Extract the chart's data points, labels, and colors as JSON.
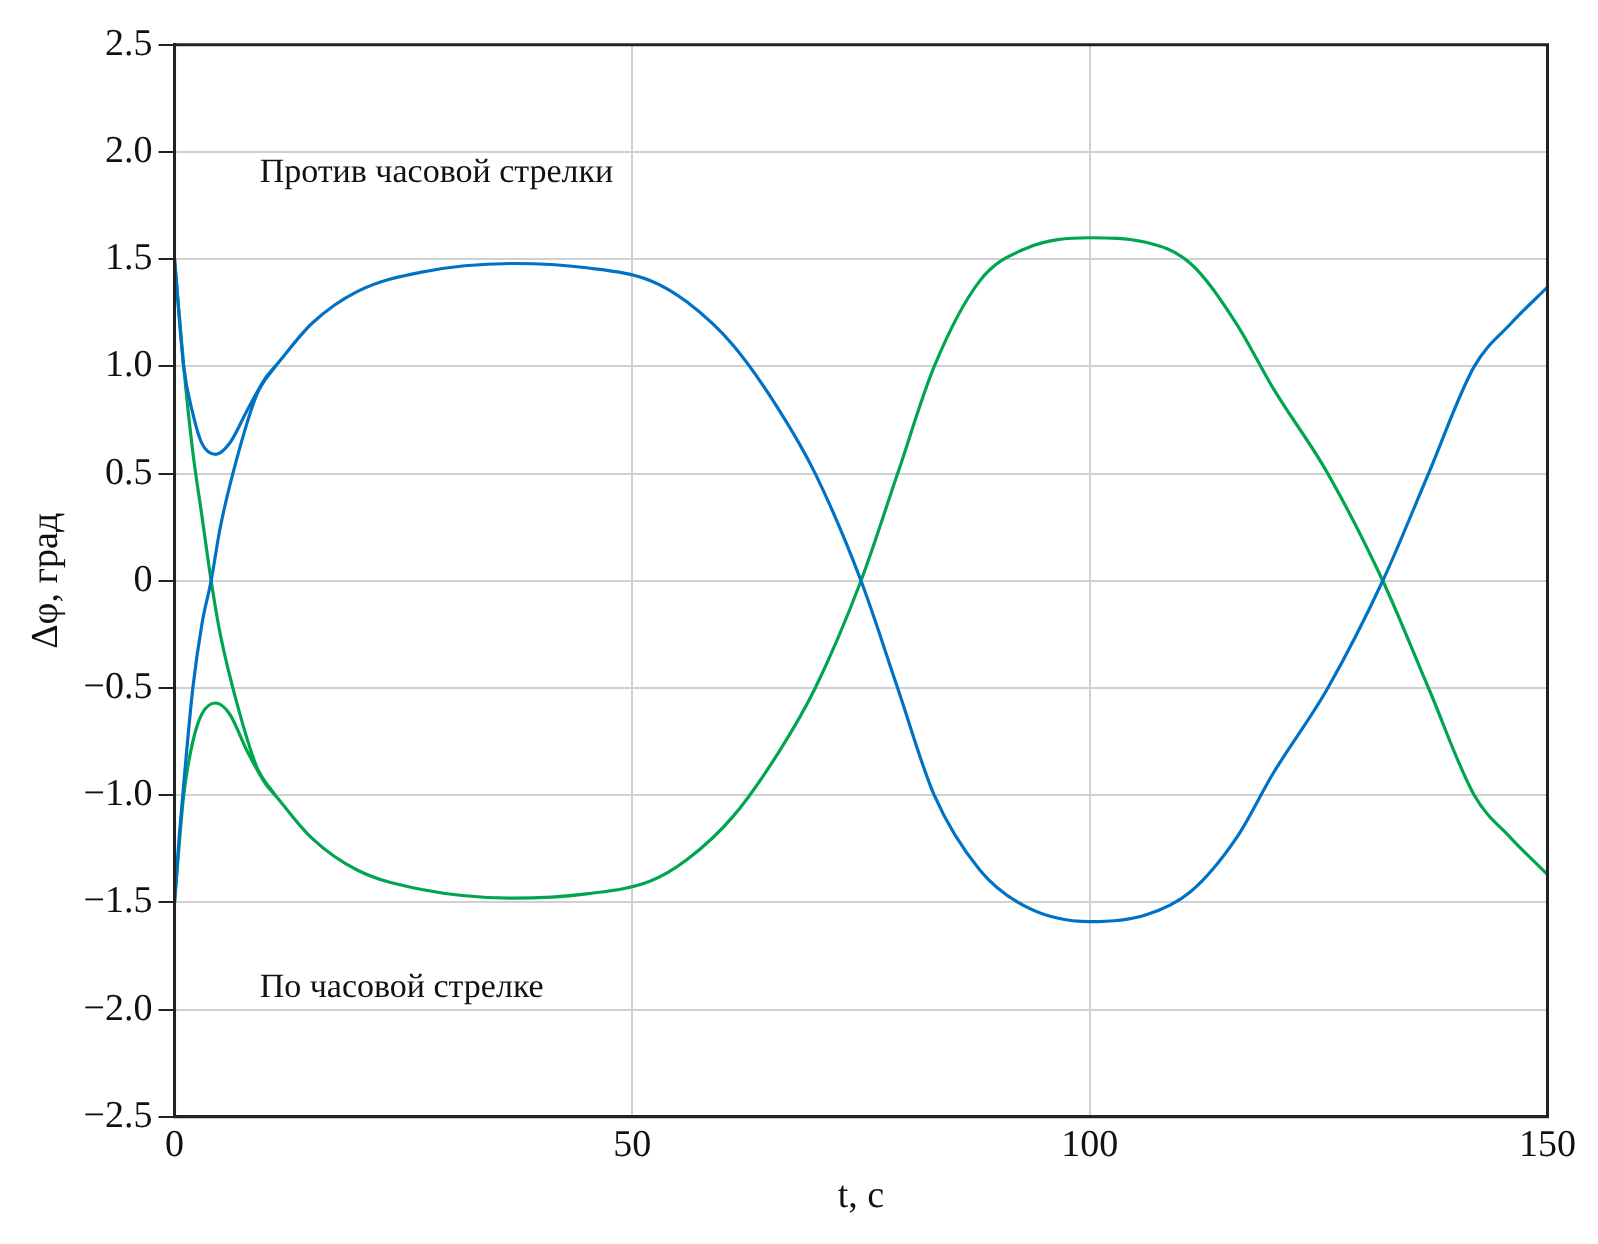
{
  "chart_data": {
    "type": "line",
    "xlabel": "t, с",
    "ylabel": "Δφ, град",
    "annotations": [
      "Против часовой стрелки",
      "По часовой стрелке"
    ],
    "xlim": [
      0,
      150
    ],
    "xticks": [
      0,
      50,
      100,
      150
    ],
    "ylim": [
      -2.5,
      2.5
    ],
    "yticks": [
      {
        "value": -2.5,
        "label": "−2.5"
      },
      {
        "value": -2.0,
        "label": "−2.0"
      },
      {
        "value": -1.5,
        "label": "−1.5"
      },
      {
        "value": -1.0,
        "label": "−1.0"
      },
      {
        "value": -0.5,
        "label": "−0.5"
      },
      0,
      {
        "value": 0.5,
        "label": "0.5"
      },
      {
        "value": 1.0,
        "label": "1.0"
      },
      {
        "value": 1.5,
        "label": "1.5"
      },
      {
        "value": 2.0,
        "label": "2.0"
      },
      {
        "value": 2.5,
        "label": "2.5"
      }
    ],
    "grid": true,
    "legend": false,
    "marker": "none",
    "line_style": "solid",
    "series": [
      {
        "color": "#0072c6",
        "x": [
          0,
          1,
          2,
          3,
          4.5,
          6,
          8,
          10,
          11,
          15,
          20,
          27,
          37,
          45,
          52,
          56,
          61,
          66,
          70,
          75,
          79,
          83,
          88,
          93,
          100,
          106,
          111,
          116,
          120,
          126,
          132,
          137,
          142,
          146,
          150
        ],
        "values": [
          1.5,
          1.0,
          0.78,
          0.64,
          0.59,
          0.64,
          0.8,
          0.95,
          1.0,
          1.2,
          1.35,
          1.44,
          1.48,
          1.46,
          1.4,
          1.3,
          1.1,
          0.8,
          0.5,
          0,
          -0.5,
          -1.0,
          -1.35,
          -1.52,
          -1.59,
          -1.56,
          -1.45,
          -1.2,
          -0.9,
          -0.5,
          0,
          0.5,
          1.0,
          1.2,
          1.37
        ]
      },
      {
        "color": "#0072c6",
        "x": [
          0,
          0.5,
          1,
          2,
          3,
          4,
          5,
          7,
          9,
          11
        ],
        "values": [
          -1.5,
          -1.2,
          -0.95,
          -0.5,
          -0.2,
          0,
          0.25,
          0.6,
          0.87,
          1.0
        ]
      },
      {
        "color": "#00a550",
        "x": [
          0,
          1,
          2,
          3,
          4.5,
          6,
          8,
          10,
          11,
          15,
          20,
          27,
          37,
          45,
          52,
          56,
          61,
          66,
          70,
          75,
          79,
          83,
          88,
          93,
          100,
          106,
          111,
          116,
          120,
          126,
          132,
          137,
          142,
          146,
          150
        ],
        "values": [
          -1.5,
          -1.0,
          -0.75,
          -0.62,
          -0.57,
          -0.62,
          -0.8,
          -0.95,
          -1.0,
          -1.2,
          -1.35,
          -1.44,
          -1.48,
          -1.46,
          -1.4,
          -1.3,
          -1.1,
          -0.8,
          -0.5,
          0,
          0.5,
          1.0,
          1.4,
          1.55,
          1.6,
          1.58,
          1.48,
          1.2,
          0.9,
          0.5,
          0,
          -0.5,
          -1.0,
          -1.2,
          -1.37
        ]
      },
      {
        "color": "#00a550",
        "x": [
          0,
          1,
          2,
          3,
          4,
          5,
          7,
          9,
          11
        ],
        "values": [
          1.5,
          1.0,
          0.6,
          0.3,
          0,
          -0.25,
          -0.6,
          -0.87,
          -1.0
        ]
      }
    ]
  }
}
